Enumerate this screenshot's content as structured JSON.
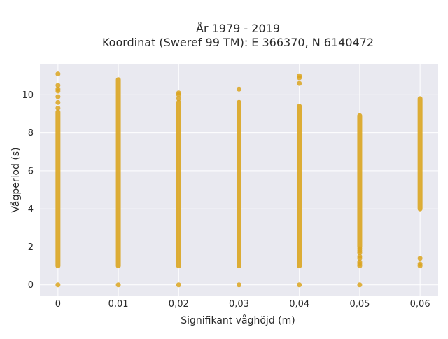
{
  "chart_data": {
    "type": "scatter",
    "title_line1": "År 1979 - 2019",
    "title_line2": "Koordinat (Sweref 99 TM): E 366370, N 6140472",
    "xlabel": "Signifikant våghöjd (m)",
    "ylabel": "Vågperiod (s)",
    "x_ticks": [
      0,
      0.01,
      0.02,
      0.03,
      0.04,
      0.05,
      0.06
    ],
    "x_tick_labels": [
      "0",
      "0,01",
      "0,02",
      "0,03",
      "0,04",
      "0,05",
      "0,06"
    ],
    "y_ticks": [
      0,
      2,
      4,
      6,
      8,
      10
    ],
    "y_tick_labels": [
      "0",
      "2",
      "4",
      "6",
      "8",
      "10"
    ],
    "xlim": [
      -0.003,
      0.063
    ],
    "ylim": [
      -0.6,
      11.6
    ],
    "grid": true,
    "colors": {
      "points": "#DAA520",
      "plot_bg": "#E9E9F0",
      "grid": "#ffffff"
    },
    "series": [
      {
        "columns": [
          {
            "x": 0,
            "ranges": [
              [
                1.0,
                9.1
              ]
            ],
            "points": [
              0,
              9.3,
              9.6,
              9.9,
              10.2,
              10.3,
              10.5,
              11.1
            ]
          },
          {
            "x": 0.01,
            "ranges": [
              [
                1.0,
                10.8
              ]
            ],
            "points": [
              0
            ]
          },
          {
            "x": 0.02,
            "ranges": [
              [
                1.0,
                9.6
              ]
            ],
            "points": [
              0,
              9.8,
              10.0,
              10.1
            ]
          },
          {
            "x": 0.03,
            "ranges": [
              [
                1.0,
                9.6
              ]
            ],
            "points": [
              0,
              10.3
            ]
          },
          {
            "x": 0.04,
            "ranges": [
              [
                1.0,
                9.4
              ]
            ],
            "points": [
              0,
              10.6,
              10.9,
              11.0
            ]
          },
          {
            "x": 0.05,
            "ranges": [
              [
                2.0,
                8.9
              ]
            ],
            "points": [
              0,
              1.0,
              1.1,
              1.2,
              1.4,
              1.5,
              1.7,
              1.8,
              1.9
            ]
          },
          {
            "x": 0.06,
            "ranges": [
              [
                4.0,
                9.8
              ]
            ],
            "points": [
              1.0,
              1.1,
              1.4
            ]
          }
        ]
      }
    ]
  }
}
